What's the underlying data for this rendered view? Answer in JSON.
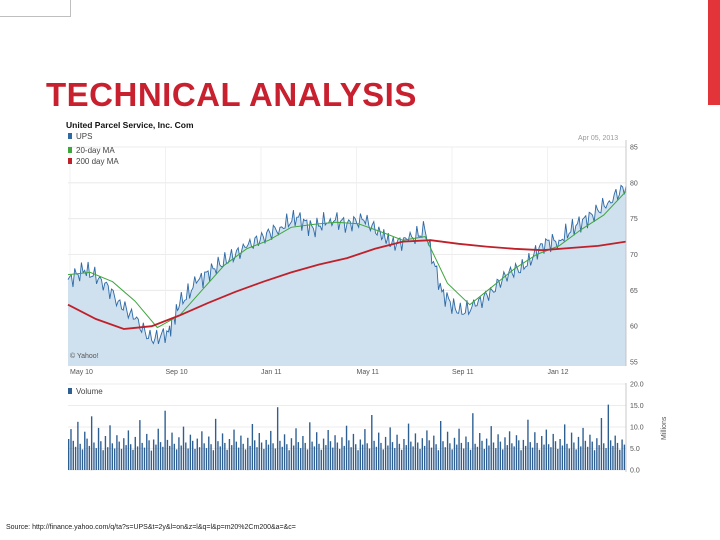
{
  "slide": {
    "title": "TECHNICAL ANALYSIS",
    "source": "Source: http://finance.yahoo.com/q/ta?s=UPS&t=2y&l=on&z=l&q=l&p=m20%2Cm200&a=&c="
  },
  "chart_data": [
    {
      "type": "line",
      "title": "United Parcel Service, Inc. Com",
      "date_label": "Apr 05, 2013",
      "watermark": "© Yahoo!",
      "x_ticks": [
        "May 10",
        "Sep 10",
        "Jan 11",
        "May 11",
        "Sep 11",
        "Jan 12"
      ],
      "y_ticks": [
        "85",
        "80",
        "75",
        "70",
        "65",
        "60",
        "55"
      ],
      "ylim": [
        55,
        85
      ],
      "legend_placement": "top-left",
      "grid": true,
      "series": [
        {
          "name": "UPS",
          "color": "#2e6aa6",
          "fill": "#cfe0ee",
          "x": [
            0,
            3,
            6,
            9,
            12,
            15,
            18,
            20,
            23,
            26,
            29,
            32,
            35,
            38,
            41,
            44,
            47,
            50,
            53,
            56,
            58,
            61,
            64,
            67,
            70,
            73,
            76,
            79,
            82,
            85,
            88,
            91,
            94,
            97,
            100
          ],
          "values": [
            66.5,
            67.8,
            66.5,
            63.5,
            61.0,
            58.0,
            59.2,
            63.0,
            66.0,
            68.0,
            69.5,
            71.0,
            72.5,
            73.8,
            75.2,
            73.6,
            75.0,
            74.3,
            74.8,
            73.0,
            71.5,
            72.0,
            73.3,
            64.8,
            61.8,
            62.8,
            65.0,
            67.5,
            68.3,
            71.5,
            72.0,
            74.0,
            75.5,
            77.5,
            79.5
          ]
        },
        {
          "name": "20-day MA",
          "color": "#3da63d",
          "x": [
            0,
            4,
            8,
            12,
            16,
            20,
            24,
            28,
            32,
            36,
            40,
            44,
            48,
            52,
            56,
            60,
            64,
            68,
            72,
            76,
            80,
            84,
            88,
            92,
            96,
            100
          ],
          "values": [
            67.2,
            67.5,
            66.2,
            63.5,
            59.8,
            61.5,
            65.0,
            68.5,
            70.8,
            72.0,
            73.8,
            74.2,
            74.5,
            74.3,
            73.2,
            72.0,
            72.5,
            66.0,
            63.0,
            65.5,
            68.0,
            70.0,
            71.2,
            73.5,
            75.5,
            78.8
          ]
        },
        {
          "name": "200 day MA",
          "color": "#c0202a",
          "x": [
            0,
            5,
            10,
            15,
            20,
            25,
            30,
            35,
            40,
            45,
            50,
            55,
            60,
            65,
            70,
            75,
            80,
            85,
            90,
            95,
            100
          ],
          "values": [
            63.0,
            61.0,
            59.6,
            60.0,
            61.5,
            63.2,
            64.8,
            66.2,
            67.5,
            68.6,
            69.5,
            70.8,
            71.8,
            72.0,
            71.5,
            71.1,
            70.8,
            70.6,
            70.9,
            71.2,
            71.8
          ]
        }
      ]
    },
    {
      "type": "bar",
      "series_name": "Volume",
      "units": "Millions",
      "y_ticks": [
        "20.0",
        "15.0",
        "10.0",
        "5.0",
        "0.0"
      ],
      "ylim": [
        0,
        20
      ],
      "color": "#2e5f93",
      "values": [
        7.2,
        9.5,
        6.8,
        5.4,
        11.2,
        6.1,
        4.8,
        8.9,
        7.3,
        5.6,
        12.5,
        6.4,
        5.1,
        9.8,
        6.7,
        4.6,
        7.9,
        5.3,
        10.4,
        6.2,
        5.0,
        8.1,
        6.6,
        4.9,
        7.4,
        5.8,
        9.2,
        6.0,
        4.7,
        7.7,
        5.5,
        11.6,
        6.3,
        5.2,
        8.4,
        6.9,
        4.5,
        7.1,
        5.9,
        9.6,
        6.5,
        5.4,
        13.8,
        7.0,
        5.6,
        8.7,
        6.1,
        4.8,
        7.6,
        5.7,
        10.1,
        6.4,
        5.0,
        8.2,
        6.8,
        4.9,
        7.3,
        5.3,
        9.0,
        6.2,
        5.1,
        7.8,
        6.0,
        4.6,
        11.9,
        6.7,
        5.5,
        8.5,
        6.3,
        4.7,
        7.2,
        5.8,
        9.4,
        6.6,
        5.2,
        8.0,
        6.1,
        4.8,
        7.5,
        5.6,
        10.7,
        6.9,
        5.3,
        8.6,
        6.4,
        4.9,
        7.0,
        5.9,
        9.1,
        6.2,
        5.0,
        14.6,
        6.8,
        5.4,
        8.3,
        6.0,
        4.6,
        7.4,
        5.7,
        9.7,
        6.5,
        5.1,
        7.9,
        6.3,
        4.8,
        11.1,
        6.6,
        5.5,
        8.8,
        6.1,
        4.7,
        7.3,
        5.8,
        9.3,
        6.7,
        5.2,
        8.1,
        6.4,
        4.9,
        7.6,
        5.6,
        10.3,
        6.9,
        5.3,
        8.4,
        6.0,
        4.6,
        7.1,
        5.9,
        9.5,
        6.2,
        5.0,
        12.8,
        6.8,
        5.4,
        8.7,
        6.3,
        4.8,
        7.7,
        5.7,
        9.9,
        6.5,
        5.1,
        8.2,
        6.1,
        4.7,
        7.2,
        5.8,
        10.8,
        6.6,
        5.5,
        8.5,
        6.4,
        4.9,
        7.4,
        5.6,
        9.2,
        6.9,
        5.2,
        8.0,
        6.0,
        4.6,
        11.4,
        6.7,
        5.3,
        8.9,
        6.2,
        4.8,
        7.5,
        5.9,
        9.6,
        6.3,
        5.0,
        7.8,
        6.5,
        4.7,
        13.2,
        6.1,
        5.4,
        8.6,
        6.8,
        4.9,
        7.3,
        5.7,
        10.2,
        6.4,
        5.1,
        8.3,
        6.6,
        4.8,
        7.6,
        5.8,
        9.0,
        6.2,
        5.5,
        8.1,
        6.9,
        4.6,
        7.0,
        5.6,
        11.7,
        6.5,
        5.2,
        8.8,
        6.3,
        4.7,
        7.9,
        5.9,
        9.4,
        6.0,
        5.3,
        8.4,
        6.7,
        4.9,
        7.2,
        5.7,
        10.6,
        6.1,
        5.0,
        8.7,
        6.4,
        4.8,
        7.7,
        5.5,
        9.8,
        6.8,
        5.4,
        8.2,
        6.6,
        4.6,
        7.4,
        5.8,
        12.1,
        6.2,
        5.1,
        15.2,
        6.9,
        5.6,
        8.0,
        6.3,
        4.7,
        7.1,
        5.9
      ]
    }
  ]
}
